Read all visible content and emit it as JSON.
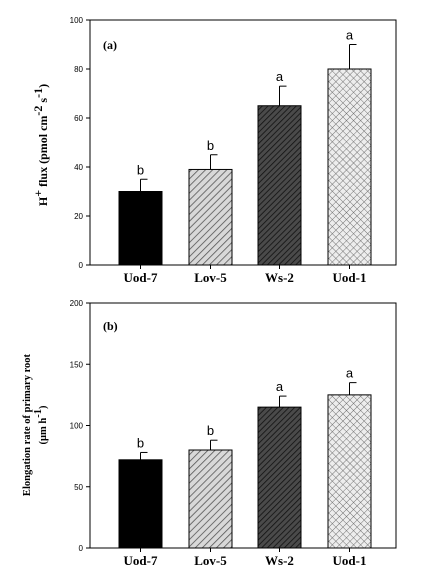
{
  "chart_data": [
    {
      "type": "bar",
      "panel_label": "(a)",
      "ylabel_parts": {
        "base": "H",
        "sup1": "+",
        "mid": " flux (pmol cm",
        "sup2": "-2",
        "s": " s",
        "sup3": "-1",
        "end": ")"
      },
      "categories": [
        "Uod-7",
        "Lov-5",
        "Ws-2",
        "Uod-1"
      ],
      "values": [
        30,
        39,
        65,
        80
      ],
      "errors": [
        5,
        6,
        8,
        10
      ],
      "significance": [
        "b",
        "b",
        "a",
        "a"
      ],
      "ylim": [
        0,
        100
      ],
      "yticks": [
        "0",
        "20",
        "40",
        "60",
        "80",
        "100"
      ],
      "fills": [
        "solid",
        "hatch-light",
        "hatch-dark",
        "crosshatch"
      ]
    },
    {
      "type": "bar",
      "panel_label": "(b)",
      "ylabel_line1": "Elongation rate of primary root",
      "ylabel_line2_parts": {
        "base": "(µm h",
        "sup": "-1",
        "end": ")"
      },
      "categories": [
        "Uod-7",
        "Lov-5",
        "Ws-2",
        "Uod-1"
      ],
      "values": [
        72,
        80,
        115,
        125
      ],
      "errors": [
        6,
        8,
        9,
        10
      ],
      "significance": [
        "b",
        "b",
        "a",
        "a"
      ],
      "ylim": [
        0,
        200
      ],
      "yticks": [
        "0",
        "50",
        "100",
        "150",
        "200"
      ],
      "fills": [
        "solid",
        "hatch-light",
        "hatch-dark",
        "crosshatch"
      ]
    }
  ]
}
